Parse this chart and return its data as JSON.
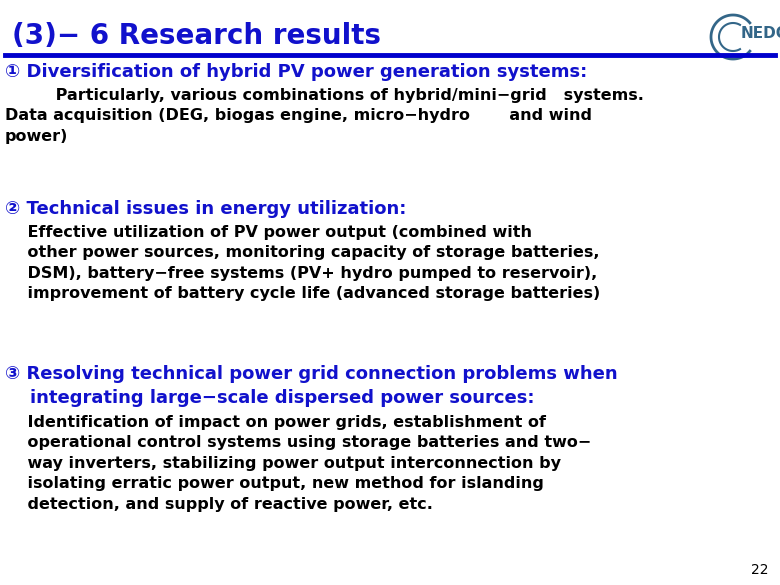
{
  "title": "(3)− 6 Research results",
  "title_color": "#1111CC",
  "title_fontsize": 20,
  "background_color": "#FFFFFF",
  "separator_color": "#0000CC",
  "heading_color": "#1111CC",
  "body_color": "#000000",
  "page_number": "22",
  "nedo_color": "#336688",
  "sections": [
    {
      "heading": "① Diversification of hybrid PV power generation systems:",
      "body": "         Particularly, various combinations of hybrid/mini−grid   systems.\nData acquisition (DEG, biogas engine, micro−hydro       and wind\npower)"
    },
    {
      "heading": "② Technical issues in energy utilization:",
      "body": "    Effective utilization of PV power output (combined with\n    other power sources, monitoring capacity of storage batteries,\n    DSM), battery−free systems (PV+ hydro pumped to reservoir),\n    improvement of battery cycle life (advanced storage batteries)"
    },
    {
      "heading": "③ Resolving technical power grid connection problems when\n    integrating large−scale dispersed power sources:",
      "body": "    Identification of impact on power grids, establishment of\n    operational control systems using storage batteries and two−\n    way inverters, stabilizing power output interconnection by\n    isolating erratic power output, new method for islanding\n    detection, and supply of reactive power, etc."
    }
  ]
}
